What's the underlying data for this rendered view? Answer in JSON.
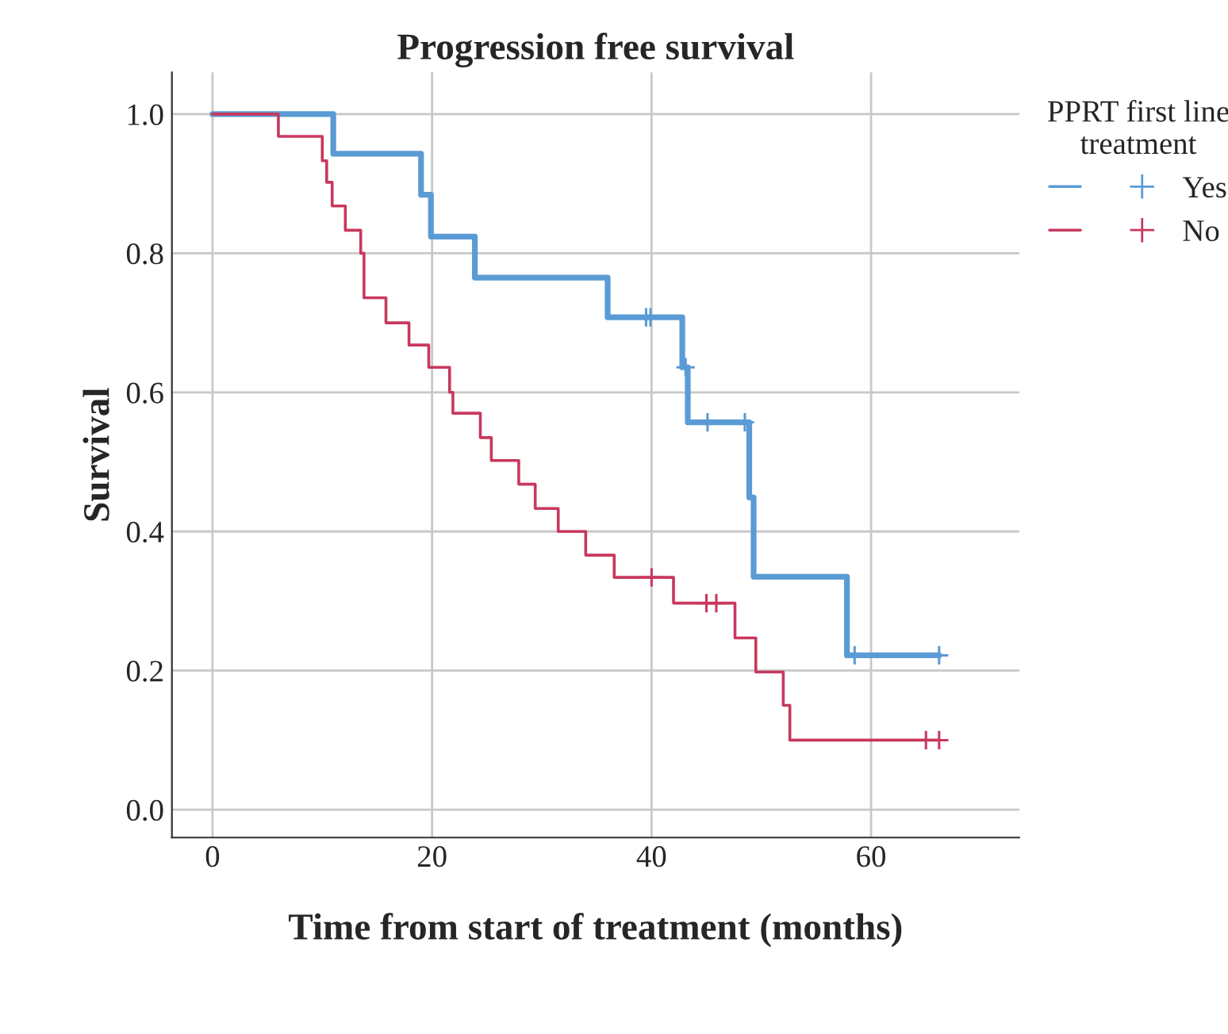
{
  "chart_data": {
    "type": "step",
    "title": "Progression free survival",
    "xlabel": "Time from start of treatment (months)",
    "ylabel": "Survival",
    "legend_title": "PPRT first line\ntreatment",
    "legend": "right",
    "grid": true,
    "xlim": [
      -3.7,
      73.5
    ],
    "ylim": [
      -0.04,
      1.06
    ],
    "xticks": [
      0,
      20,
      40,
      60
    ],
    "yticks": [
      {
        "value": 0,
        "label": "0.0"
      },
      {
        "value": 0.2,
        "label": "0.2"
      },
      {
        "value": 0.4,
        "label": "0.4"
      },
      {
        "value": 0.6,
        "label": "0.6"
      },
      {
        "value": 0.8,
        "label": "0.8"
      },
      {
        "value": 1,
        "label": "1.0"
      }
    ],
    "series": [
      {
        "name": "Yes",
        "color": "#5b9bd5",
        "x": [
          0,
          11.0,
          19.0,
          19.9,
          23.9,
          36.0,
          42.8,
          43.3,
          48.9,
          49.3,
          57.8,
          66.2
        ],
        "values": [
          1,
          0.943,
          0.884,
          0.824,
          0.765,
          0.708,
          0.636,
          0.557,
          0.449,
          0.335,
          0.222,
          0.222
        ]
      },
      {
        "name": "No",
        "color": "#c8385e",
        "x": [
          0,
          6.0,
          10.0,
          10.4,
          10.9,
          12.1,
          13.5,
          13.8,
          15.8,
          17.9,
          19.7,
          21.6,
          21.9,
          24.4,
          25.4,
          27.9,
          29.4,
          31.5,
          34.0,
          36.6,
          42.0,
          47.6,
          49.5,
          52.0,
          52.6,
          66.2
        ],
        "values": [
          1,
          0.968,
          0.933,
          0.902,
          0.868,
          0.833,
          0.8,
          0.736,
          0.7,
          0.668,
          0.636,
          0.6,
          0.57,
          0.535,
          0.502,
          0.468,
          0.433,
          0.4,
          0.366,
          0.334,
          0.297,
          0.247,
          0.198,
          0.15,
          0.1,
          0.1
        ]
      },
      {
        "type": "scatter",
        "marker": "cross",
        "color": "#5b9bd5",
        "x": [
          39.5,
          39.9,
          43.1,
          45.1,
          48.5,
          58.5,
          66.2
        ],
        "values": [
          0.708,
          0.708,
          0.636,
          0.557,
          0.557,
          0.222,
          0.222
        ]
      },
      {
        "type": "scatter",
        "marker": "cross",
        "color": "#c8385e",
        "x": [
          40.0,
          45.0,
          45.9,
          65.0,
          66.2
        ],
        "values": [
          0.334,
          0.297,
          0.297,
          0.1,
          0.1
        ]
      }
    ]
  }
}
